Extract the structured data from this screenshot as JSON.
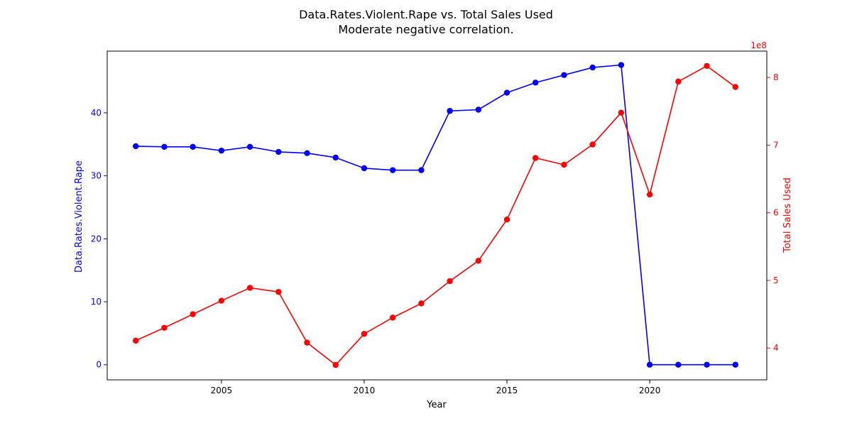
{
  "chart_data": {
    "type": "line",
    "title": "Data.Rates.Violent.Rape vs. Total Sales Used",
    "subtitle": "Moderate negative correlation.",
    "xlabel": "Year",
    "x": [
      2002,
      2003,
      2004,
      2005,
      2006,
      2007,
      2008,
      2009,
      2010,
      2011,
      2012,
      2013,
      2014,
      2015,
      2016,
      2017,
      2018,
      2019,
      2020,
      2021,
      2022,
      2023
    ],
    "xlim": [
      2001,
      2024.1
    ],
    "xticks": [
      2005,
      2010,
      2015,
      2020
    ],
    "grid": false,
    "series": [
      {
        "name": "Data.Rates.Violent.Rape",
        "axis": "left",
        "color": "#0000ff",
        "values": [
          34.7,
          34.6,
          34.6,
          34.0,
          34.6,
          33.8,
          33.6,
          32.9,
          31.2,
          30.9,
          30.9,
          40.3,
          40.5,
          43.2,
          44.8,
          46.0,
          47.2,
          47.6,
          0.0,
          0.0,
          0.0,
          0.0
        ]
      },
      {
        "name": "Total Sales Used",
        "axis": "right",
        "color": "#ff0000",
        "values": [
          411000000,
          430000000,
          450000000,
          470000000,
          489000000,
          483000000,
          408000000,
          375000000,
          421000000,
          445000000,
          466000000,
          499000000,
          529000000,
          590000000,
          681000000,
          671000000,
          701000000,
          748000000,
          627000000,
          794000000,
          817000000,
          786000000
        ]
      }
    ],
    "y_left": {
      "label": "Data.Rates.Violent.Rape",
      "color": "#0000ff",
      "lim": [
        -2.4,
        49.8
      ],
      "ticks": [
        0,
        10,
        20,
        30,
        40
      ]
    },
    "y_right": {
      "label": "Total Sales Used",
      "color": "#ff0000",
      "lim": [
        353000000,
        839000000
      ],
      "ticks": [
        400000000,
        500000000,
        600000000,
        700000000,
        800000000
      ],
      "tick_labels": [
        "4",
        "5",
        "6",
        "7",
        "8"
      ],
      "offset_text": "1e8"
    }
  }
}
